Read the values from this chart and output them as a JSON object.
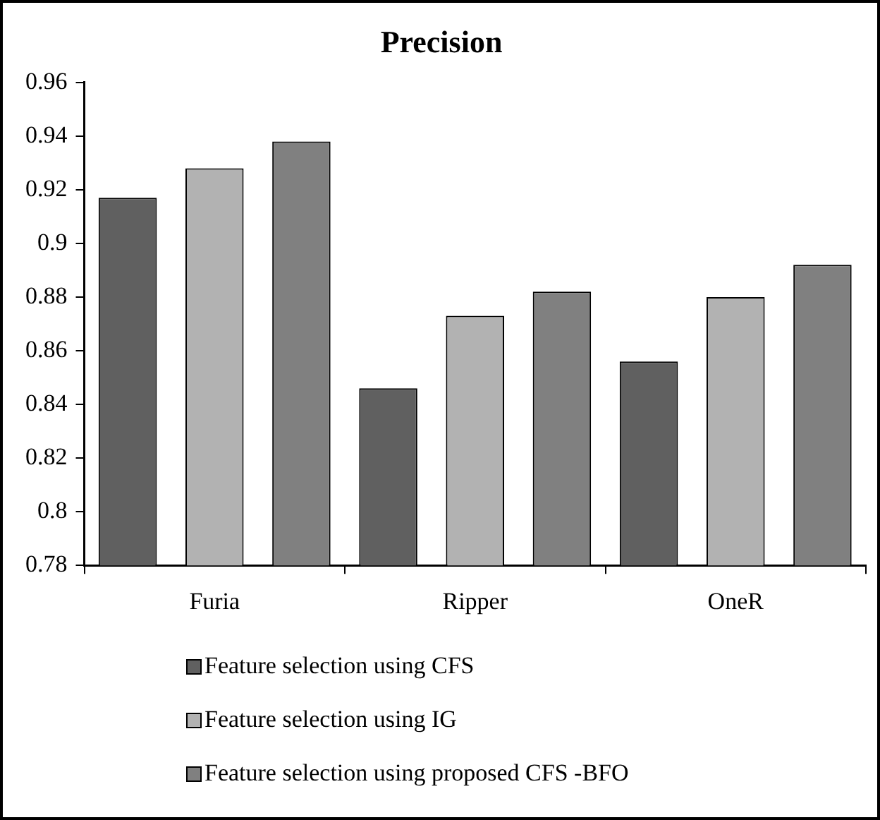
{
  "chart_data": {
    "type": "bar",
    "title": "Precision",
    "categories": [
      "Furia",
      "Ripper",
      "OneR"
    ],
    "series": [
      {
        "name": "Feature selection using CFS",
        "color": "#606060",
        "values": [
          0.917,
          0.846,
          0.856
        ]
      },
      {
        "name": "Feature selection using IG",
        "color": "#b2b2b2",
        "values": [
          0.928,
          0.873,
          0.88
        ]
      },
      {
        "name": "Feature selection using proposed CFS -BFO",
        "color": "#808080",
        "values": [
          0.938,
          0.882,
          0.892
        ]
      }
    ],
    "ylim": [
      0.78,
      0.96
    ],
    "yticks": [
      0.78,
      0.8,
      0.82,
      0.84,
      0.86,
      0.88,
      0.9,
      0.92,
      0.94,
      0.96
    ],
    "grid": false,
    "legend": "bottom"
  }
}
